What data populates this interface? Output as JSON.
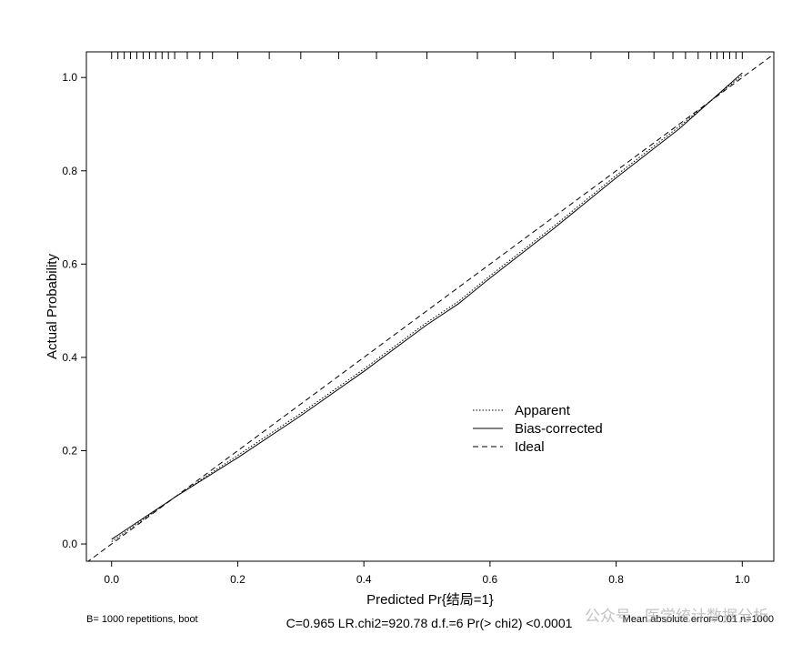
{
  "chart_data": {
    "type": "line",
    "xlabel": "Predicted Pr{结局=1}",
    "ylabel": "Actual Probability",
    "xlim": [
      -0.04,
      1.05
    ],
    "ylim": [
      -0.037,
      1.055
    ],
    "xticks": [
      {
        "value": 0,
        "label": "0.0"
      },
      0.2,
      0.4,
      0.6,
      0.8,
      {
        "value": 1,
        "label": "1.0"
      }
    ],
    "yticks": [
      {
        "value": 0,
        "label": "0.0"
      },
      0.2,
      0.4,
      0.6,
      0.8,
      {
        "value": 1,
        "label": "1.0"
      }
    ],
    "series": [
      {
        "name": "Apparent",
        "color": "#000000",
        "dash": "dotted",
        "x": [
          0,
          0.1,
          0.2,
          0.3,
          0.4,
          0.5,
          0.55,
          0.6,
          0.7,
          0.8,
          0.9,
          1.0
        ],
        "values": [
          0.005,
          0.1,
          0.19,
          0.28,
          0.375,
          0.475,
          0.52,
          0.575,
          0.68,
          0.79,
          0.895,
          1.005
        ]
      },
      {
        "name": "Bias-corrected",
        "color": "#000000",
        "dash": "solid",
        "x": [
          0,
          0.1,
          0.2,
          0.3,
          0.4,
          0.5,
          0.55,
          0.6,
          0.7,
          0.8,
          0.9,
          1.0
        ],
        "values": [
          0.01,
          0.1,
          0.185,
          0.275,
          0.37,
          0.47,
          0.515,
          0.57,
          0.675,
          0.785,
          0.89,
          1.01
        ]
      },
      {
        "name": "Ideal",
        "color": "#000000",
        "dash": "dashed",
        "x": [
          -0.04,
          1.05
        ],
        "values": [
          -0.04,
          1.05
        ]
      }
    ],
    "rug": [
      0.0,
      0.01,
      0.02,
      0.03,
      0.04,
      0.05,
      0.06,
      0.07,
      0.08,
      0.09,
      0.1,
      0.12,
      0.14,
      0.16,
      0.2,
      0.25,
      0.3,
      0.36,
      0.42,
      0.5,
      0.58,
      0.64,
      0.7,
      0.76,
      0.82,
      0.86,
      0.89,
      0.91,
      0.93,
      0.95,
      0.96,
      0.97,
      0.98,
      0.99,
      1.0
    ],
    "legend": "center-right",
    "notes": {
      "left": "B= 1000 repetitions, boot",
      "center": "C=0.965  LR.chi2=920.78  d.f.=6  Pr(> chi2) <0.0001",
      "right": "Mean absolute error=0.01 n=1000"
    },
    "watermark": "公众号 · 医学统计数据分析"
  }
}
